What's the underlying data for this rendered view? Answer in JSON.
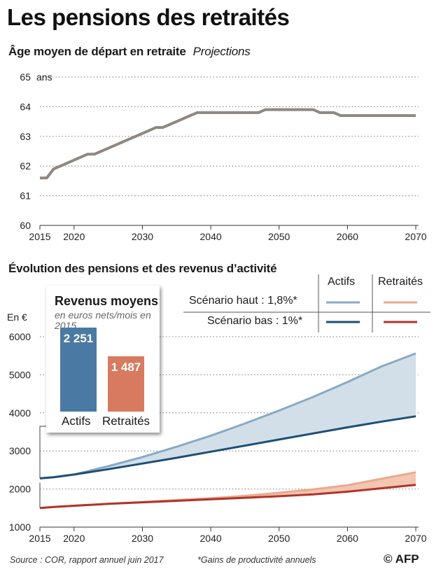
{
  "header": {
    "title": "Les pensions des retraités",
    "chart1_title": "Âge moyen de départ en retraite",
    "chart1_subtitle": "Projections",
    "chart2_title": "Évolution des pensions et des revenus d’activité"
  },
  "legend": {
    "col_actifs": "Actifs",
    "col_retraites": "Retraités",
    "row_haut": "Scénario haut : 1,8%*",
    "row_bas": "Scénario bas : 1%*"
  },
  "inset": {
    "title": "Revenus moyens",
    "subtitle": "en euros nets/mois en 2015",
    "bars": [
      {
        "label": "Actifs",
        "value": 2251,
        "display": "2 251"
      },
      {
        "label": "Retraités",
        "value": 1487,
        "display": "1 487"
      }
    ]
  },
  "footer": {
    "source": "Source : COR, rapport annuel juin 2017",
    "note": "*Gains de productivité annuels",
    "credit": "© AFP"
  },
  "colors": {
    "age_line": "#8f8780",
    "actifs_haut": "#89a9c4",
    "actifs_bas": "#1d4f75",
    "actifs_area": "#d2dfe9",
    "retraites_haut": "#eba98e",
    "retraites_bas": "#b0342b",
    "retraites_area": "#f2c6b1",
    "bar_actifs": "#4a7aa3",
    "bar_retraites": "#d87a5f"
  },
  "chart_data": [
    {
      "type": "line",
      "title": "Âge moyen de départ en retraite",
      "subtitle": "Projections",
      "ylabel": "ans",
      "xlim": [
        2015,
        2070
      ],
      "ylim": [
        60,
        65
      ],
      "xticks": [
        2015,
        2020,
        2030,
        2040,
        2050,
        2060,
        2070
      ],
      "yticks": [
        60,
        61,
        62,
        63,
        64,
        65
      ],
      "series": [
        {
          "name": "Âge moyen de départ",
          "x": [
            2015,
            2016,
            2017,
            2018,
            2020,
            2022,
            2023,
            2030,
            2032,
            2033,
            2038,
            2047,
            2048,
            2055,
            2056,
            2058,
            2059,
            2070
          ],
          "y": [
            61.6,
            61.6,
            61.9,
            62.0,
            62.2,
            62.4,
            62.4,
            63.1,
            63.3,
            63.3,
            63.8,
            63.8,
            63.9,
            63.9,
            63.8,
            63.8,
            63.7,
            63.7
          ]
        }
      ]
    },
    {
      "type": "area",
      "title": "Évolution des pensions et des revenus d’activité",
      "ylabel": "En €",
      "xlim": [
        2015,
        2070
      ],
      "ylim": [
        1000,
        6000
      ],
      "xticks": [
        2015,
        2020,
        2030,
        2040,
        2050,
        2060,
        2070
      ],
      "yticks": [
        1000,
        2000,
        3000,
        4000,
        5000,
        6000
      ],
      "x": [
        2015,
        2017,
        2020,
        2025,
        2030,
        2035,
        2040,
        2045,
        2050,
        2055,
        2060,
        2065,
        2070
      ],
      "series": [
        {
          "name": "Actifs – Scénario haut : 1,8%*",
          "values": [
            2280,
            2310,
            2380,
            2600,
            2840,
            3110,
            3400,
            3720,
            4060,
            4420,
            4810,
            5220,
            5560
          ]
        },
        {
          "name": "Actifs – Scénario bas : 1%*",
          "values": [
            2280,
            2310,
            2380,
            2520,
            2670,
            2820,
            2980,
            3140,
            3300,
            3460,
            3620,
            3770,
            3910
          ]
        },
        {
          "name": "Retraités – Scénario haut : 1,8%*",
          "values": [
            1500,
            1530,
            1560,
            1610,
            1660,
            1710,
            1760,
            1820,
            1900,
            1990,
            2100,
            2270,
            2440
          ]
        },
        {
          "name": "Retraités – Scénario bas : 1%*",
          "values": [
            1500,
            1530,
            1560,
            1610,
            1650,
            1690,
            1730,
            1770,
            1810,
            1860,
            1930,
            2020,
            2110
          ]
        }
      ]
    }
  ]
}
